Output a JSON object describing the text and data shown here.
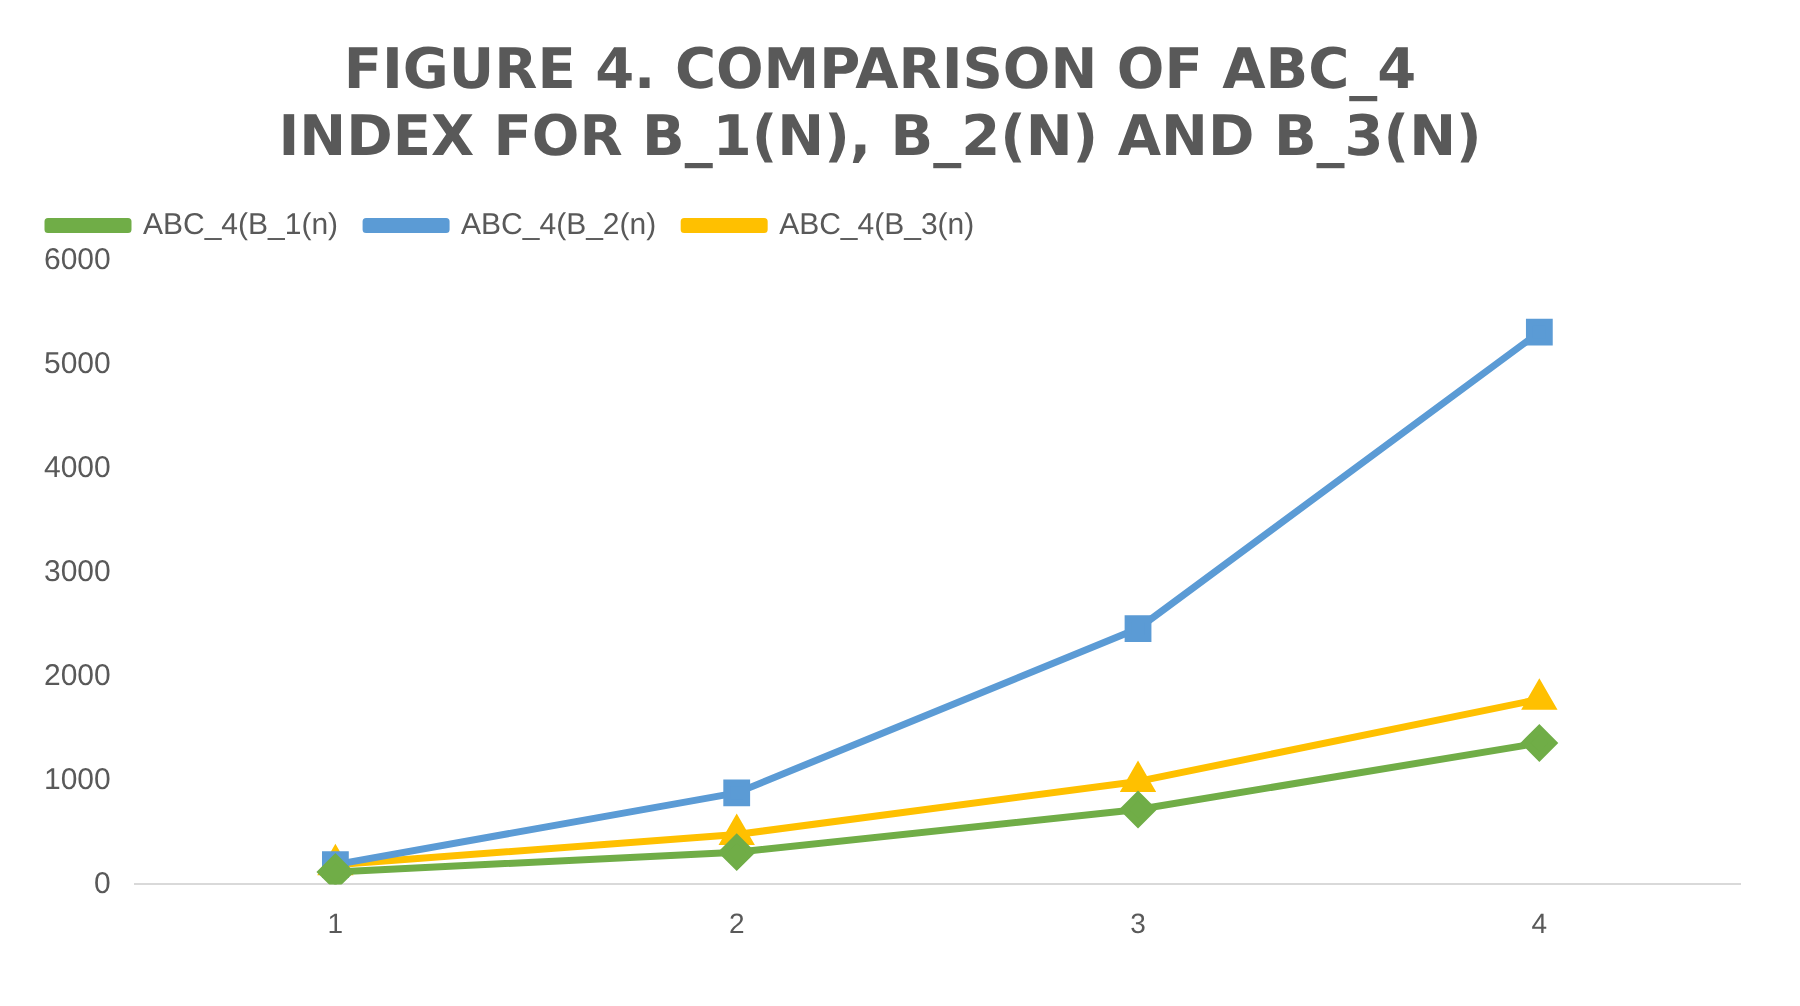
{
  "chart_data": {
    "type": "line",
    "title": "FIGURE 4. COMPARISON OF ABC_4 INDEX FOR B_1(N), B_2(N) AND B_3(N)",
    "categories": [
      "1",
      "2",
      "3",
      "4"
    ],
    "series": [
      {
        "name": "ABC_4(B_1(n)",
        "color": "#70ad47",
        "marker": "diamond",
        "values": [
          120,
          310,
          720,
          1360
        ]
      },
      {
        "name": "ABC_4(B_2(n)",
        "color": "#5b9bd5",
        "marker": "square",
        "values": [
          190,
          880,
          2460,
          5310
        ]
      },
      {
        "name": "ABC_4(B_3(n)",
        "color": "#ffc000",
        "marker": "triangle",
        "values": [
          190,
          480,
          990,
          1780
        ]
      }
    ],
    "ylim": [
      0,
      6000
    ],
    "yticks": [
      0,
      1000,
      2000,
      3000,
      4000,
      5000,
      6000
    ],
    "grid": false,
    "legend": "top",
    "line_style": "solid"
  }
}
